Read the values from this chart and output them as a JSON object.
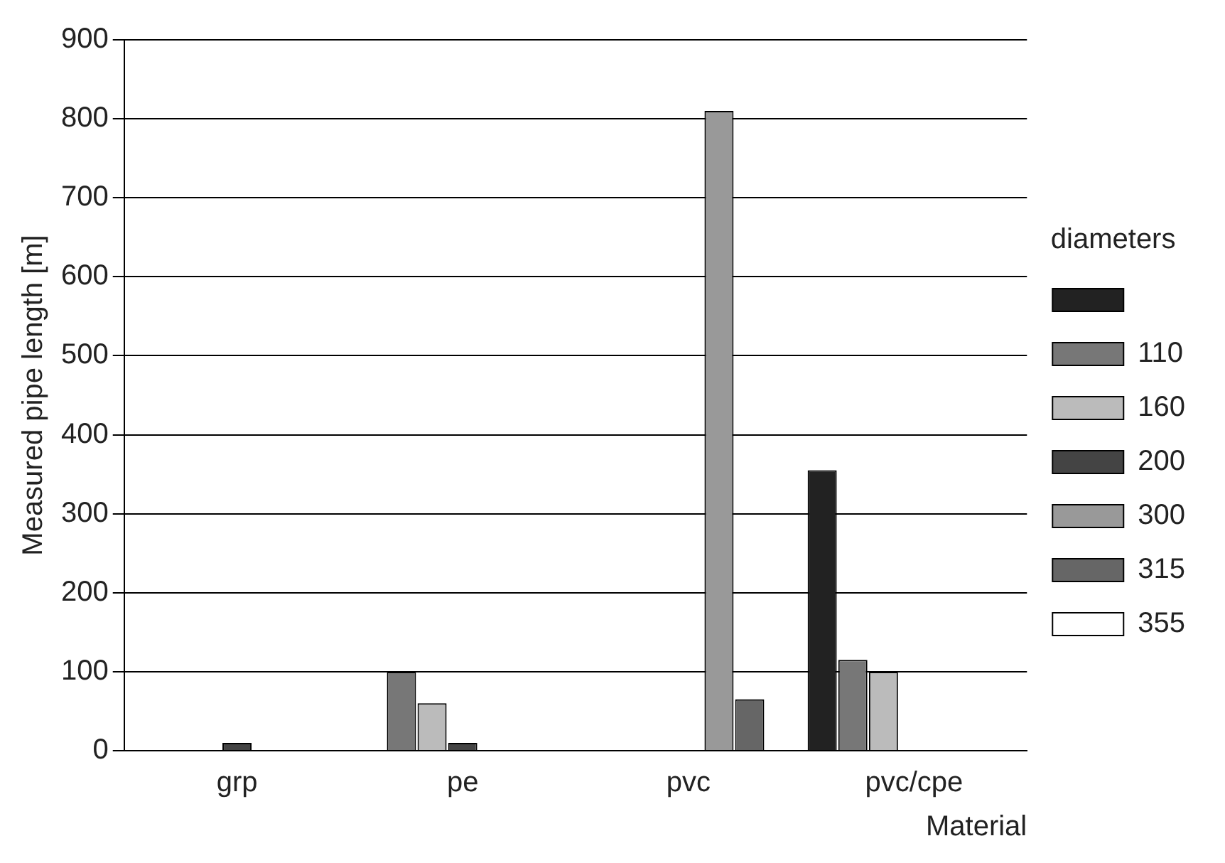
{
  "chart_data": {
    "type": "bar",
    "xlabel": "Material",
    "ylabel": "Measured pipe length [m]",
    "legend_title": "diameters",
    "categories": [
      "grp",
      "pe",
      "pvc",
      "pvc/cpe"
    ],
    "series": [
      {
        "color": "#222222",
        "values": [
          null,
          null,
          null,
          355
        ]
      },
      {
        "name": "110",
        "color": "#777777",
        "values": [
          null,
          100,
          null,
          115
        ]
      },
      {
        "name": "160",
        "color": "#bbbbbb",
        "values": [
          null,
          60,
          null,
          100
        ]
      },
      {
        "name": "200",
        "color": "#444444",
        "values": [
          10,
          10,
          null,
          null
        ]
      },
      {
        "name": "300",
        "color": "#999999",
        "values": [
          null,
          null,
          810,
          null
        ]
      },
      {
        "name": "315",
        "color": "#666666",
        "values": [
          null,
          null,
          65,
          null
        ]
      },
      {
        "name": "355",
        "color": "#ffffff",
        "values": [
          null,
          null,
          null,
          null
        ]
      }
    ],
    "ylim": [
      0,
      900
    ],
    "yticks": [
      0,
      100,
      200,
      300,
      400,
      500,
      600,
      700,
      800,
      900
    ],
    "grid": "y",
    "legend": "right"
  }
}
